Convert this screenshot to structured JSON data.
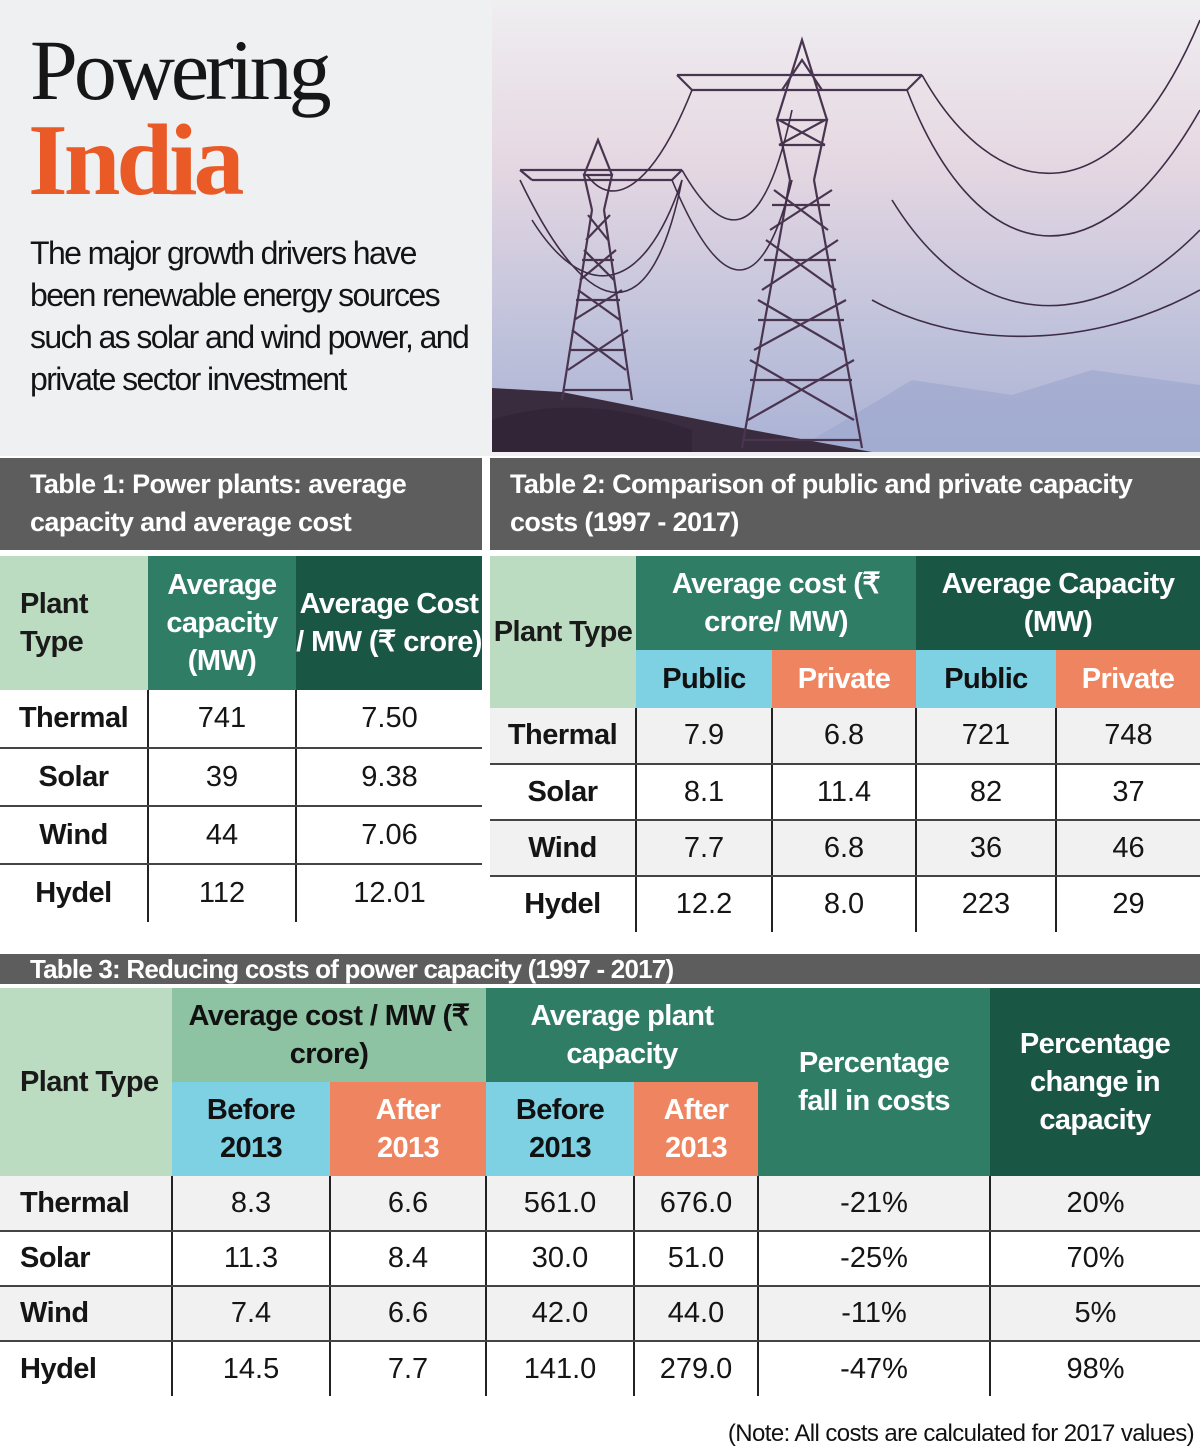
{
  "header": {
    "title_line1": "Powering",
    "title_line2": "India",
    "subtitle": "The major growth drivers have been renewable energy sources such as solar and wind power, and private sector investment"
  },
  "table1": {
    "caption": "Table 1: Power plants: average capacity and average cost",
    "headers": [
      "Plant Type",
      "Average capacity (MW)",
      "Average Cost / MW (₹ crore)"
    ],
    "rows": [
      [
        "Thermal",
        "741",
        "7.50"
      ],
      [
        "Solar",
        "39",
        "9.38"
      ],
      [
        "Wind",
        "44",
        "7.06"
      ],
      [
        "Hydel",
        "112",
        "12.01"
      ]
    ]
  },
  "table2": {
    "caption": "Table 2: Comparison of public and private capacity costs (1997 - 2017)",
    "stub_header": "Plant Type",
    "group_headers": [
      "Average cost (₹ crore/ MW)",
      "Average Capacity (MW)"
    ],
    "sub_headers": [
      "Public",
      "Private",
      "Public",
      "Private"
    ],
    "rows": [
      [
        "Thermal",
        "7.9",
        "6.8",
        "721",
        "748"
      ],
      [
        "Solar",
        "8.1",
        "11.4",
        "82",
        "37"
      ],
      [
        "Wind",
        "7.7",
        "6.8",
        "36",
        "46"
      ],
      [
        "Hydel",
        "12.2",
        "8.0",
        "223",
        "29"
      ]
    ]
  },
  "table3": {
    "caption": "Table 3: Reducing costs of power capacity (1997 - 2017)",
    "stub_header": "Plant Type",
    "group_headers": [
      "Average cost / MW (₹ crore)",
      "Average plant capacity"
    ],
    "single_headers": [
      "Percentage fall in costs",
      "Percentage change in capacity"
    ],
    "sub_headers": [
      "Before 2013",
      "After 2013",
      "Before 2013",
      "After 2013"
    ],
    "rows": [
      [
        "Thermal",
        "8.3",
        "6.6",
        "561.0",
        "676.0",
        "-21%",
        "20%"
      ],
      [
        "Solar",
        "11.3",
        "8.4",
        "30.0",
        "51.0",
        "-25%",
        "70%"
      ],
      [
        "Wind",
        "7.4",
        "6.6",
        "42.0",
        "44.0",
        "-11%",
        "5%"
      ],
      [
        "Hydel",
        "14.5",
        "7.7",
        "141.0",
        "279.0",
        "-47%",
        "98%"
      ]
    ]
  },
  "note": "(Note: All costs are calculated for 2017 values)",
  "colors": {
    "accent_orange": "#ea5a27",
    "green_mid": "#2f7d64",
    "green_dark": "#1a5644",
    "green_light": "#8dc2a3",
    "stub_green": "#bcdcc1",
    "blue": "#7ed0e3",
    "salmon": "#ef8560",
    "caption_grey": "#5d5d5d"
  }
}
